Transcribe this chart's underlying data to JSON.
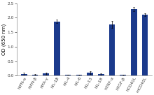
{
  "categories": [
    "hIFN-α",
    "hIFN-β",
    "hIFA-γ",
    "hIL-1β",
    "hIL-4",
    "hIL-6",
    "hIL-13",
    "hIL-18",
    "hTNF-α",
    "hTGF-β",
    "hCD40L",
    "mCD40L"
  ],
  "values": [
    0.06,
    0.03,
    0.07,
    1.87,
    0.03,
    0.02,
    0.1,
    0.05,
    1.77,
    0.02,
    2.31,
    2.1
  ],
  "errors": [
    0.04,
    0.015,
    0.03,
    0.06,
    0.01,
    0.01,
    0.04,
    0.02,
    0.12,
    0.01,
    0.07,
    0.05
  ],
  "bar_color": "#1b3a8c",
  "ylabel": "OD (650 nm)",
  "ylim": [
    0,
    2.5
  ],
  "yticks": [
    0.0,
    0.5,
    1.0,
    1.5,
    2.0,
    2.5
  ],
  "background_color": "#ffffff",
  "tick_label_fontsize": 4.2,
  "ylabel_fontsize": 5.0,
  "figsize": [
    2.2,
    1.36
  ],
  "dpi": 100
}
